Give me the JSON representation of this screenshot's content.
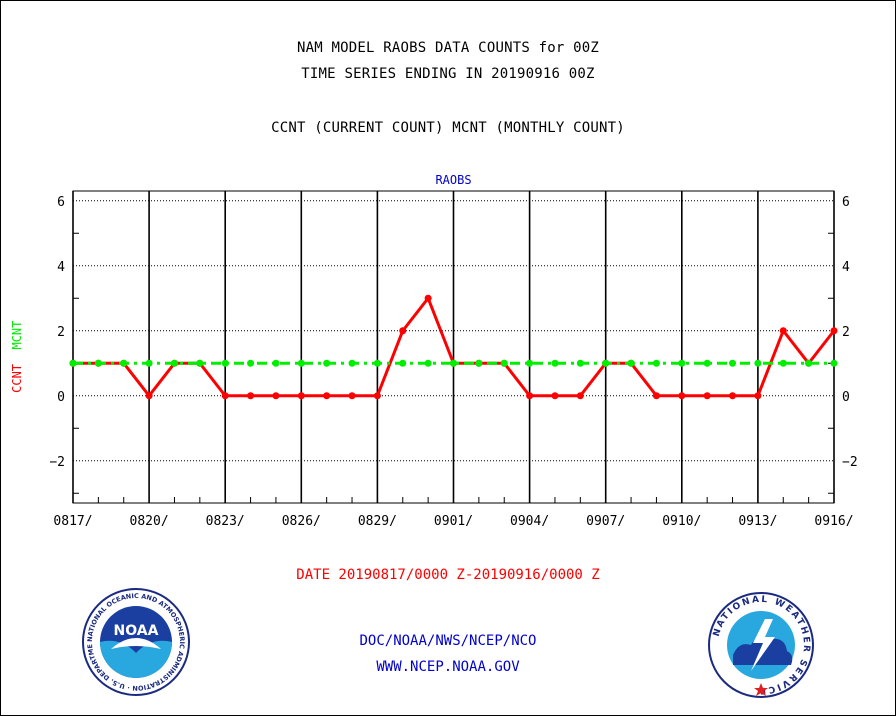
{
  "header": {
    "line1": "NAM MODEL RAOBS DATA COUNTS for 00Z",
    "line2": "TIME SERIES ENDING IN 20190916 00Z",
    "line3": "CCNT (CURRENT COUNT) MCNT (MONTHLY COUNT)"
  },
  "chart_data": {
    "type": "line",
    "title": "RAOBS",
    "ylabel_ccnt": "CCNT",
    "ylabel_mcnt": "MCNT",
    "xlabel": "DATE 20190817/0000 Z-20190916/0000 Z",
    "ylim": [
      -3.3,
      6.3
    ],
    "yticks": [
      -2,
      0,
      2,
      4,
      6
    ],
    "x_start": "0817",
    "x_tick_labels": [
      "0817/",
      "0820/",
      "0823/",
      "0826/",
      "0829/",
      "0901/",
      "0904/",
      "0907/",
      "0910/",
      "0913/",
      "0916/"
    ],
    "x": [
      "0817",
      "0818",
      "0819",
      "0820",
      "0821",
      "0822",
      "0823",
      "0824",
      "0825",
      "0826",
      "0827",
      "0828",
      "0829",
      "0830",
      "0831",
      "0901",
      "0902",
      "0903",
      "0904",
      "0905",
      "0906",
      "0907",
      "0908",
      "0909",
      "0910",
      "0911",
      "0912",
      "0913",
      "0914",
      "0915",
      "0916"
    ],
    "grid": true,
    "series": [
      {
        "name": "CCNT",
        "color": "#ff0000",
        "values": [
          1,
          1,
          1,
          0,
          1,
          1,
          0,
          0,
          0,
          0,
          0,
          0,
          0,
          2,
          3,
          1,
          1,
          1,
          0,
          0,
          0,
          1,
          1,
          0,
          0,
          0,
          0,
          0,
          2,
          1,
          2
        ]
      },
      {
        "name": "MCNT",
        "color": "#00ee00",
        "values": [
          1,
          1,
          1,
          1,
          1,
          1,
          1,
          1,
          1,
          1,
          1,
          1,
          1,
          1,
          1,
          1,
          1,
          1,
          1,
          1,
          1,
          1,
          1,
          1,
          1,
          1,
          1,
          1,
          1,
          1,
          1
        ]
      }
    ]
  },
  "footer": {
    "line1": "DOC/NOAA/NWS/NCEP/NCO",
    "line2": "WWW.NCEP.NOAA.GOV"
  },
  "logos": {
    "left_icon": "noaa-logo-icon",
    "left_text": "NOAA",
    "left_ring": "NATIONAL OCEANIC AND ATMOSPHERIC ADMINISTRATION · U.S. DEPARTMENT OF COMMERCE ·",
    "right_icon": "nws-logo-icon",
    "right_ring": "NATIONAL WEATHER SERVICE"
  },
  "colors": {
    "frame": "#000000",
    "text": "#000000",
    "title_blue": "#0000cc",
    "date_red": "#ff0000",
    "footer_blue": "#0000cc"
  }
}
